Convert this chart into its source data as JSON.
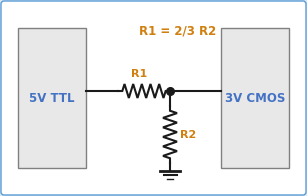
{
  "bg_color": "#dce9f5",
  "border_color": "#5b9bd5",
  "box_fill": "#e8e8e8",
  "box_edge": "#808080",
  "wire_color": "#1a1a1a",
  "label_color_orange": "#d08010",
  "label_color_blue": "#4472c4",
  "title_text": "R1 = 2/3 R2",
  "left_label": "5V TTL",
  "right_label": "3V CMOS",
  "r1_label": "R1",
  "r2_label": "R2",
  "figsize": [
    3.07,
    1.96
  ],
  "dpi": 100,
  "white_bg": "#ffffff"
}
